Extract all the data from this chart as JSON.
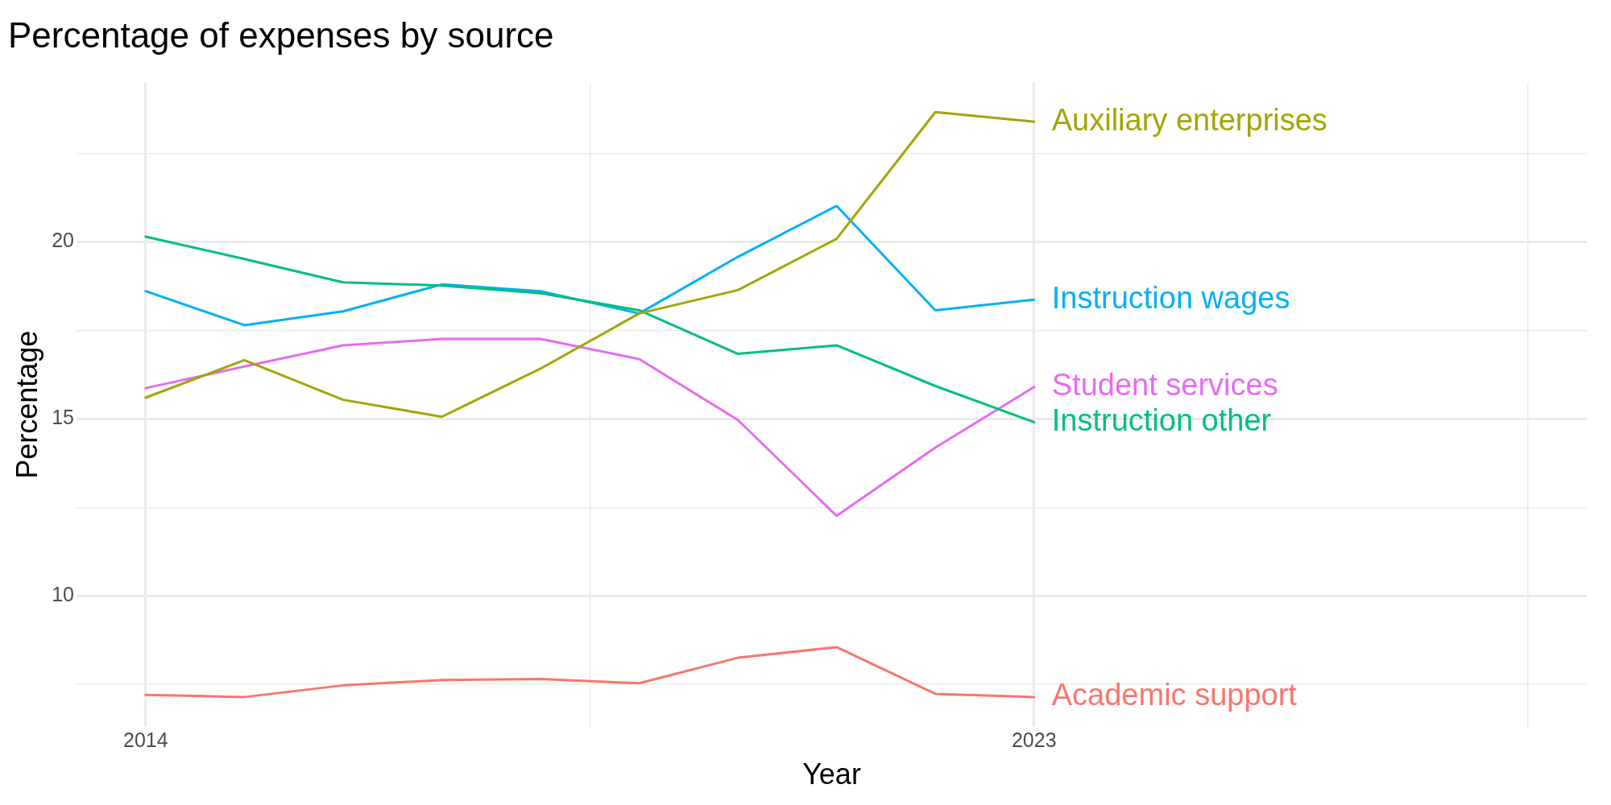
{
  "chart_data": {
    "type": "line",
    "title": "Percentage of expenses by source",
    "xlabel": "Year",
    "ylabel": "Percentage",
    "x": [
      2014,
      2015,
      2016,
      2017,
      2018,
      2019,
      2020,
      2021,
      2022,
      2023
    ],
    "xlim": [
      2013.3,
      2028.6
    ],
    "xticks": [
      2014,
      {
        "value": 2018.5,
        "label": null
      },
      2023,
      {
        "value": 2028,
        "label": null
      }
    ],
    "ylim": [
      6.3,
      24.5
    ],
    "yticks": [
      {
        "value": 7.5,
        "label": null
      },
      10,
      {
        "value": 12.5,
        "label": null
      },
      15,
      {
        "value": 17.5,
        "label": null
      },
      20,
      {
        "value": 22.5,
        "label": null
      }
    ],
    "grid": true,
    "legend": false,
    "marker": "none",
    "line_style": "solid",
    "series": [
      {
        "name": "Academic support",
        "color": "#f8766d",
        "values": [
          7.2,
          7.14,
          7.47,
          7.62,
          7.65,
          7.53,
          8.25,
          8.55,
          7.23,
          7.14
        ]
      },
      {
        "name": "Auxiliary enterprises",
        "color": "#a3a500",
        "values": [
          15.6,
          16.66,
          15.54,
          15.06,
          16.42,
          17.98,
          18.64,
          20.09,
          23.67,
          23.4
        ]
      },
      {
        "name": "Instruction other",
        "color": "#00bf7d",
        "values": [
          20.15,
          19.52,
          18.86,
          18.77,
          18.55,
          18.07,
          16.84,
          17.08,
          15.93,
          14.91
        ]
      },
      {
        "name": "Instruction wages",
        "color": "#00b0f6",
        "values": [
          18.61,
          17.65,
          18.04,
          18.8,
          18.61,
          17.98,
          19.58,
          21.02,
          18.07,
          18.37
        ]
      },
      {
        "name": "Student services",
        "color": "#e76bf3",
        "values": [
          15.87,
          16.48,
          17.08,
          17.26,
          17.26,
          16.69,
          14.97,
          12.26,
          14.19,
          15.9
        ]
      }
    ]
  }
}
